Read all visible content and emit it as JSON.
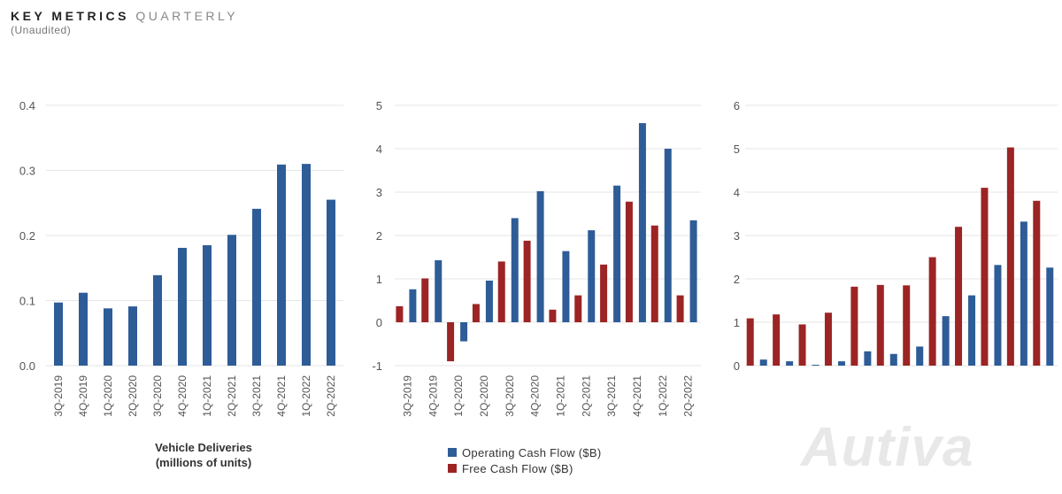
{
  "header": {
    "title_bold": "KEY METRICS",
    "title_light": "QUARTERLY",
    "subtitle": "(Unaudited)"
  },
  "colors": {
    "blue": "#2e5c97",
    "red": "#9c2424",
    "grid": "#e6e6e6",
    "axis_text": "#555555"
  },
  "watermark": "Autiva",
  "chart_data": [
    {
      "type": "bar",
      "categories": [
        "3Q-2019",
        "4Q-2019",
        "1Q-2020",
        "2Q-2020",
        "3Q-2020",
        "4Q-2020",
        "1Q-2021",
        "2Q-2021",
        "3Q-2021",
        "4Q-2021",
        "1Q-2022",
        "2Q-2022"
      ],
      "series": [
        {
          "values": [
            0.097,
            0.112,
            0.088,
            0.091,
            0.139,
            0.181,
            0.185,
            0.201,
            0.241,
            0.309,
            0.31,
            0.255
          ]
        }
      ],
      "ylim": [
        0,
        0.4
      ],
      "yticks": [
        "0.0",
        "0.1",
        "0.2",
        "0.3",
        "0.4"
      ],
      "xlabel_lines": [
        "Vehicle Deliveries",
        "(millions of units)"
      ],
      "grid": true
    },
    {
      "type": "bar",
      "categories": [
        "3Q-2019",
        "4Q-2019",
        "1Q-2020",
        "2Q-2020",
        "3Q-2020",
        "4Q-2020",
        "1Q-2021",
        "2Q-2021",
        "3Q-2021",
        "4Q-2021",
        "1Q-2022",
        "2Q-2022"
      ],
      "series": [
        {
          "name": "Operating Cash Flow ($B)",
          "values": [
            0.76,
            1.43,
            -0.44,
            0.96,
            2.4,
            3.02,
            1.64,
            2.12,
            3.15,
            4.59,
            4.0,
            2.35
          ]
        },
        {
          "name": "Free Cash Flow ($B)",
          "values": [
            0.37,
            1.01,
            -0.9,
            0.42,
            1.4,
            1.88,
            0.29,
            0.62,
            1.33,
            2.78,
            2.23,
            0.62
          ]
        }
      ],
      "ylim": [
        -1,
        5
      ],
      "yticks": [
        "-1",
        "0",
        "1",
        "2",
        "3",
        "4",
        "5"
      ],
      "legend": "bottom",
      "grid": true
    },
    {
      "type": "bar",
      "categories": [
        "",
        "",
        "",
        "",
        "",
        "",
        "",
        "",
        "",
        "",
        "",
        ""
      ],
      "series": [
        {
          "values": [
            0.14,
            0.1,
            0.02,
            0.1,
            0.33,
            0.27,
            0.44,
            1.14,
            1.62,
            2.32,
            3.32,
            2.26
          ]
        },
        {
          "values": [
            1.09,
            1.18,
            0.95,
            1.22,
            1.82,
            1.86,
            1.85,
            2.5,
            3.2,
            4.1,
            5.03,
            3.8
          ]
        }
      ],
      "ylim": [
        0,
        6
      ],
      "yticks": [
        "0",
        "1",
        "2",
        "3",
        "4",
        "5",
        "6"
      ],
      "grid": true
    }
  ],
  "legend_items": [
    {
      "label": "Operating Cash Flow ($B)"
    },
    {
      "label": "Free Cash Flow ($B)"
    }
  ]
}
